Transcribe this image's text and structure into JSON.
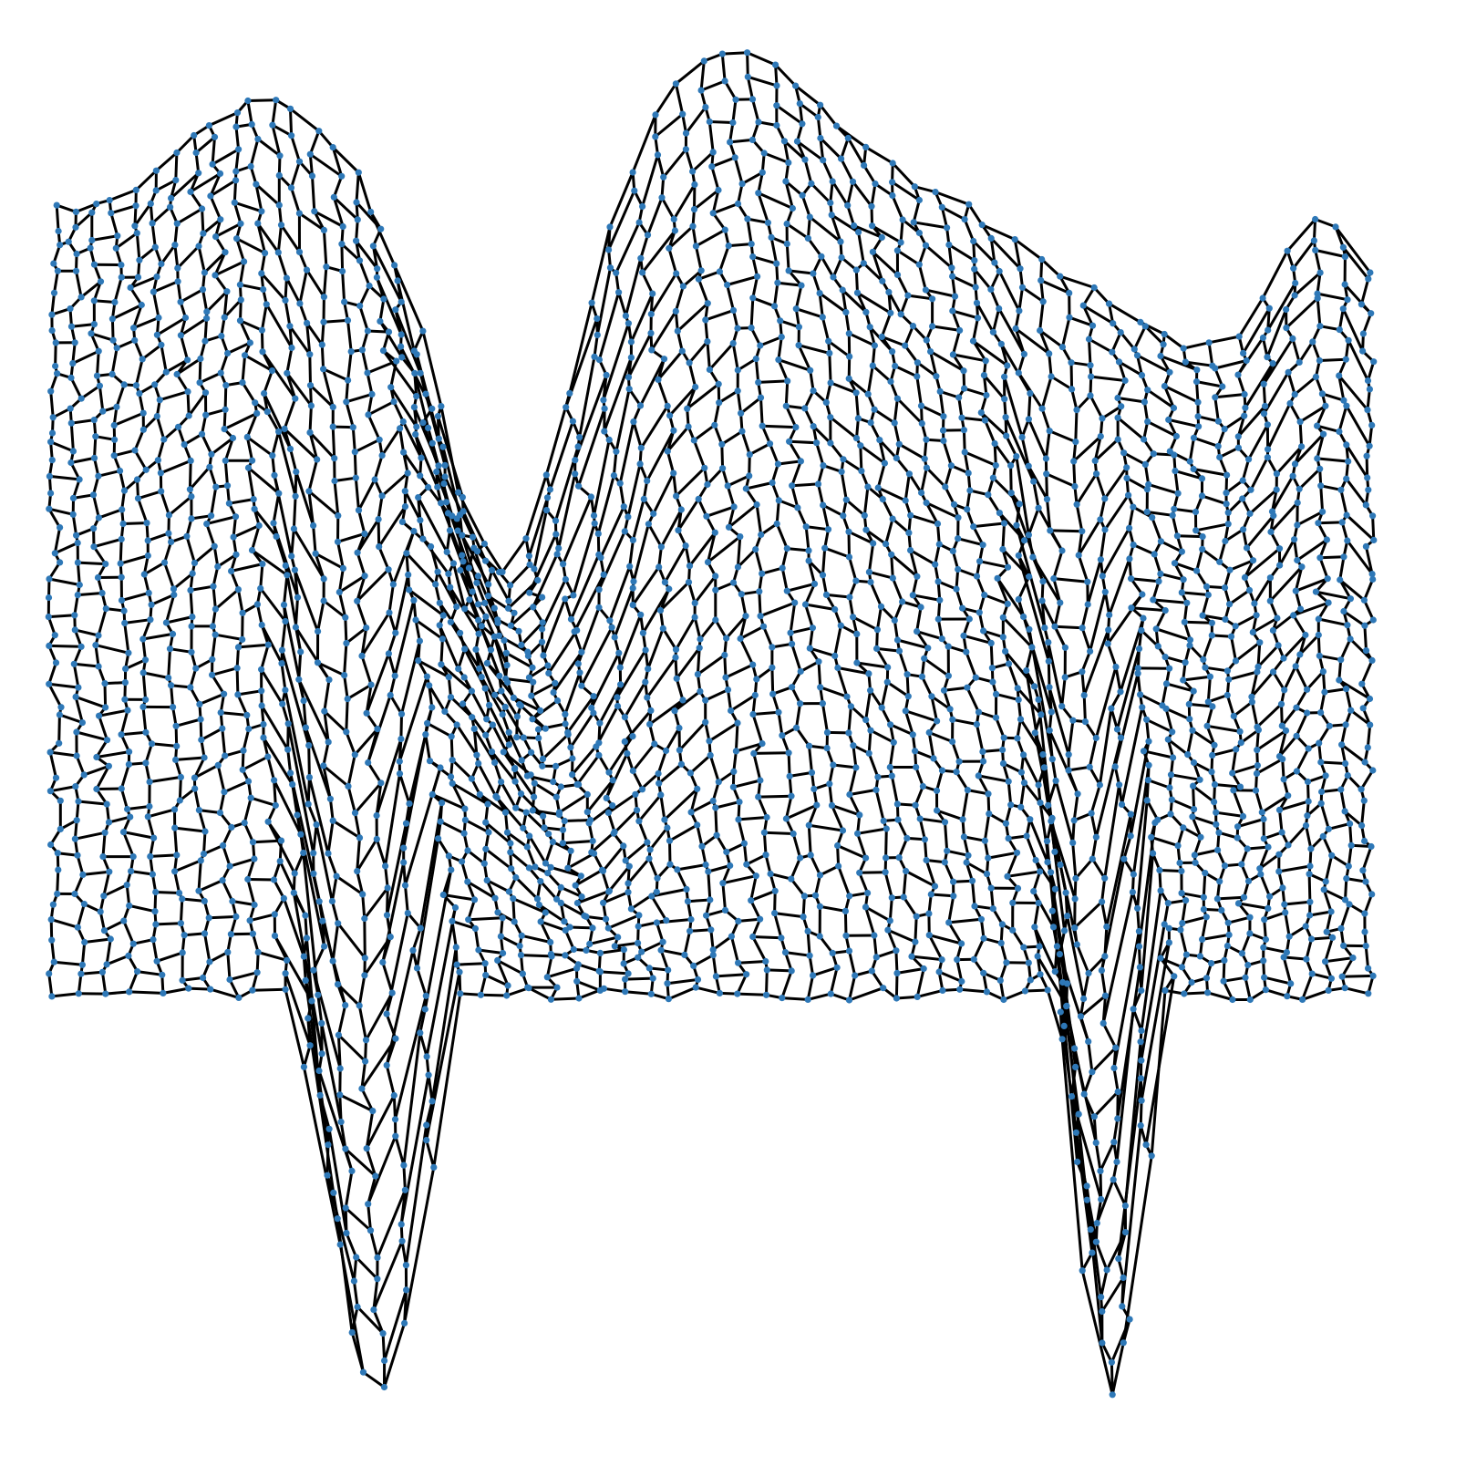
{
  "diagram": {
    "type": "network-graph",
    "style": "mesh surface rendered as node-link graph",
    "node_color": "#2e78b7",
    "edge_color": "#000000",
    "background": "#ffffff",
    "labels": []
  }
}
